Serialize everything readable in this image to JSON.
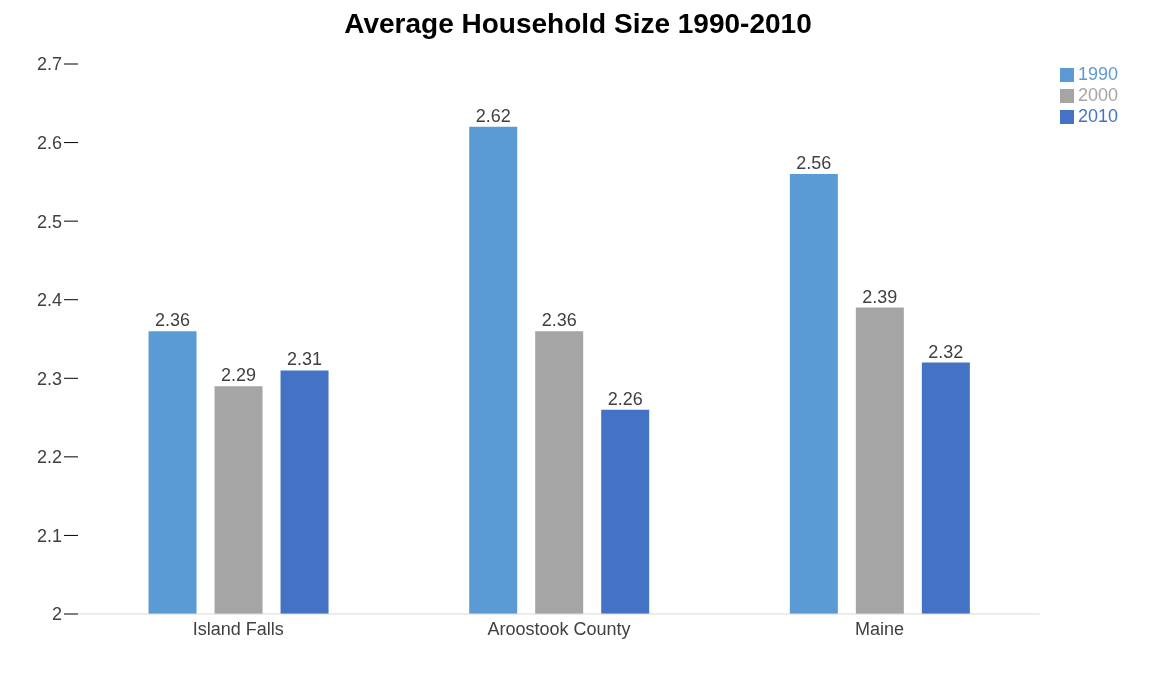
{
  "chart_data": {
    "type": "bar",
    "title": "Average Household Size 1990-2010",
    "categories": [
      "Island Falls",
      "Aroostook County",
      "Maine"
    ],
    "series": [
      {
        "name": "1990",
        "color": "#5b9bd5",
        "values": [
          2.36,
          2.62,
          2.56
        ]
      },
      {
        "name": "2000",
        "color": "#a5a5a5",
        "values": [
          2.29,
          2.36,
          2.39
        ]
      },
      {
        "name": "2010",
        "color": "#4472c4",
        "values": [
          2.31,
          2.26,
          2.32
        ]
      }
    ],
    "ylim": [
      2,
      2.7
    ],
    "yticks": [
      2,
      2.1,
      2.2,
      2.3,
      2.4,
      2.5,
      2.6,
      2.7
    ],
    "grid": false,
    "legend": "top right",
    "data_labels": true
  }
}
